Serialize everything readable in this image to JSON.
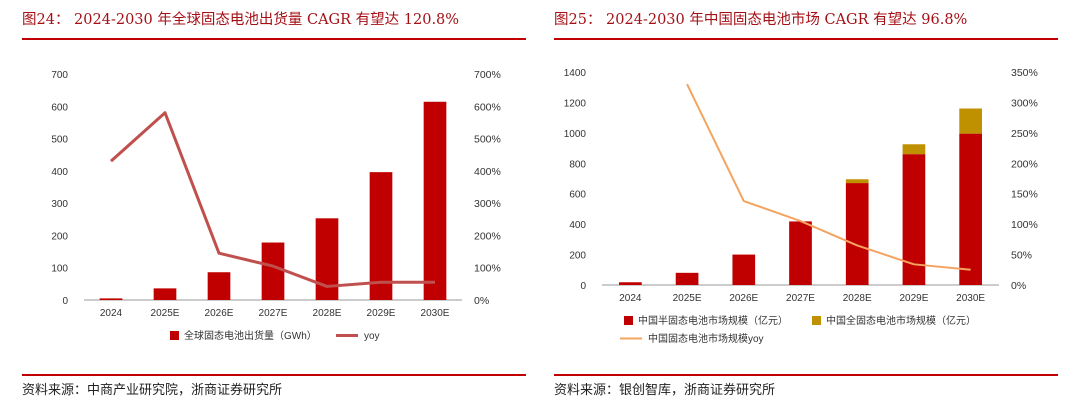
{
  "left": {
    "title": "图24： 2024-2030 年全球固态电池出货量 CAGR 有望达 120.8%",
    "source": "资料来源：中商产业研究院，浙商证券研究所",
    "chart_data": {
      "type": "bar",
      "categories": [
        "2024",
        "2025E",
        "2026E",
        "2027E",
        "2028E",
        "2029E",
        "2030E"
      ],
      "series": [
        {
          "name": "全球固态电池出货量（GWh）",
          "kind": "bar",
          "axis": "left",
          "values": [
            5,
            36,
            86,
            178,
            253,
            396,
            614
          ]
        },
        {
          "name": "yoy",
          "kind": "line",
          "axis": "right",
          "values": [
            4.3,
            5.8,
            1.45,
            1.05,
            0.42,
            0.55,
            0.55
          ]
        }
      ],
      "ylim_left": [
        0,
        700
      ],
      "yticks_left": [
        "0",
        "100",
        "200",
        "300",
        "400",
        "500",
        "600",
        "700"
      ],
      "ylim_right": [
        0,
        7.0
      ],
      "yticks_right": [
        "0%",
        "100%",
        "200%",
        "300%",
        "400%",
        "500%",
        "600%",
        "700%"
      ],
      "colors": {
        "bar": "#c00000",
        "line": "#c0504d"
      },
      "grid": false,
      "legend": "bottom"
    }
  },
  "right": {
    "title": "图25： 2024-2030 年中国固态电池市场 CAGR 有望达 96.8%",
    "source": "资料来源：银创智库，浙商证券研究所",
    "chart_data": {
      "type": "bar",
      "stacked": true,
      "categories": [
        "2024",
        "2025E",
        "2026E",
        "2027E",
        "2028E",
        "2029E",
        "2030E"
      ],
      "series": [
        {
          "name": "中国半固态电池市场规模（亿元）",
          "kind": "bar",
          "axis": "left",
          "values": [
            18,
            80,
            200,
            418,
            670,
            860,
            995
          ]
        },
        {
          "name": "中国全固态电池市场规模（亿元）",
          "kind": "bar",
          "axis": "left",
          "values": [
            0,
            0,
            0,
            0,
            25,
            65,
            165
          ]
        },
        {
          "name": "中国固态电池市场规模yoy",
          "kind": "line",
          "axis": "right",
          "values": [
            null,
            3.3,
            1.38,
            1.05,
            0.65,
            0.34,
            0.25
          ]
        }
      ],
      "ylim_left": [
        0,
        1400
      ],
      "yticks_left": [
        "0",
        "200",
        "400",
        "600",
        "800",
        "1000",
        "1200",
        "1400"
      ],
      "ylim_right": [
        0,
        3.5
      ],
      "yticks_right": [
        "0%",
        "50%",
        "100%",
        "150%",
        "200%",
        "250%",
        "300%",
        "350%"
      ],
      "colors": {
        "bar1": "#c00000",
        "bar2": "#bf9000",
        "line": "#f4a460"
      },
      "grid": false,
      "legend": "bottom"
    }
  }
}
